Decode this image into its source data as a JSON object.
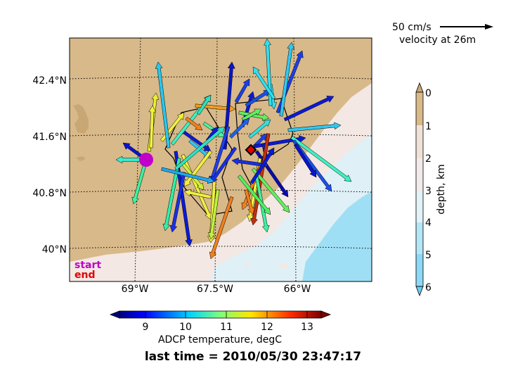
{
  "map": {
    "lat_ticks": [
      "42.4°N",
      "41.6°N",
      "40.8°N",
      "40°N"
    ],
    "lon_ticks": [
      "69°W",
      "67.5°W",
      "66°W"
    ],
    "start_label": "start",
    "end_label": "end",
    "start_color": "#c000c8",
    "end_color": "#e00000",
    "land_color": "#d8b98a",
    "shallow_color": "#f4e8e4",
    "mid_color": "#dff0f6",
    "deep_color": "#9fdff5"
  },
  "velocity_key": {
    "speed_label": "50 cm/s",
    "depth_label": "velocity at 26m"
  },
  "depth_colorbar": {
    "ticks": [
      "0",
      "1",
      "2",
      "3",
      "4",
      "5",
      "6"
    ],
    "label": "depth, km",
    "colors": [
      "#d8b98a",
      "#f1e2d8",
      "#f3ebea",
      "#e3f2f7",
      "#b5e6f7",
      "#8fd8f5"
    ]
  },
  "temp_colorbar": {
    "ticks": [
      "9",
      "10",
      "11",
      "12",
      "13"
    ],
    "label": "ADCP temperature, degC"
  },
  "last_time": "last time = 2010/05/30 23:47:17"
}
